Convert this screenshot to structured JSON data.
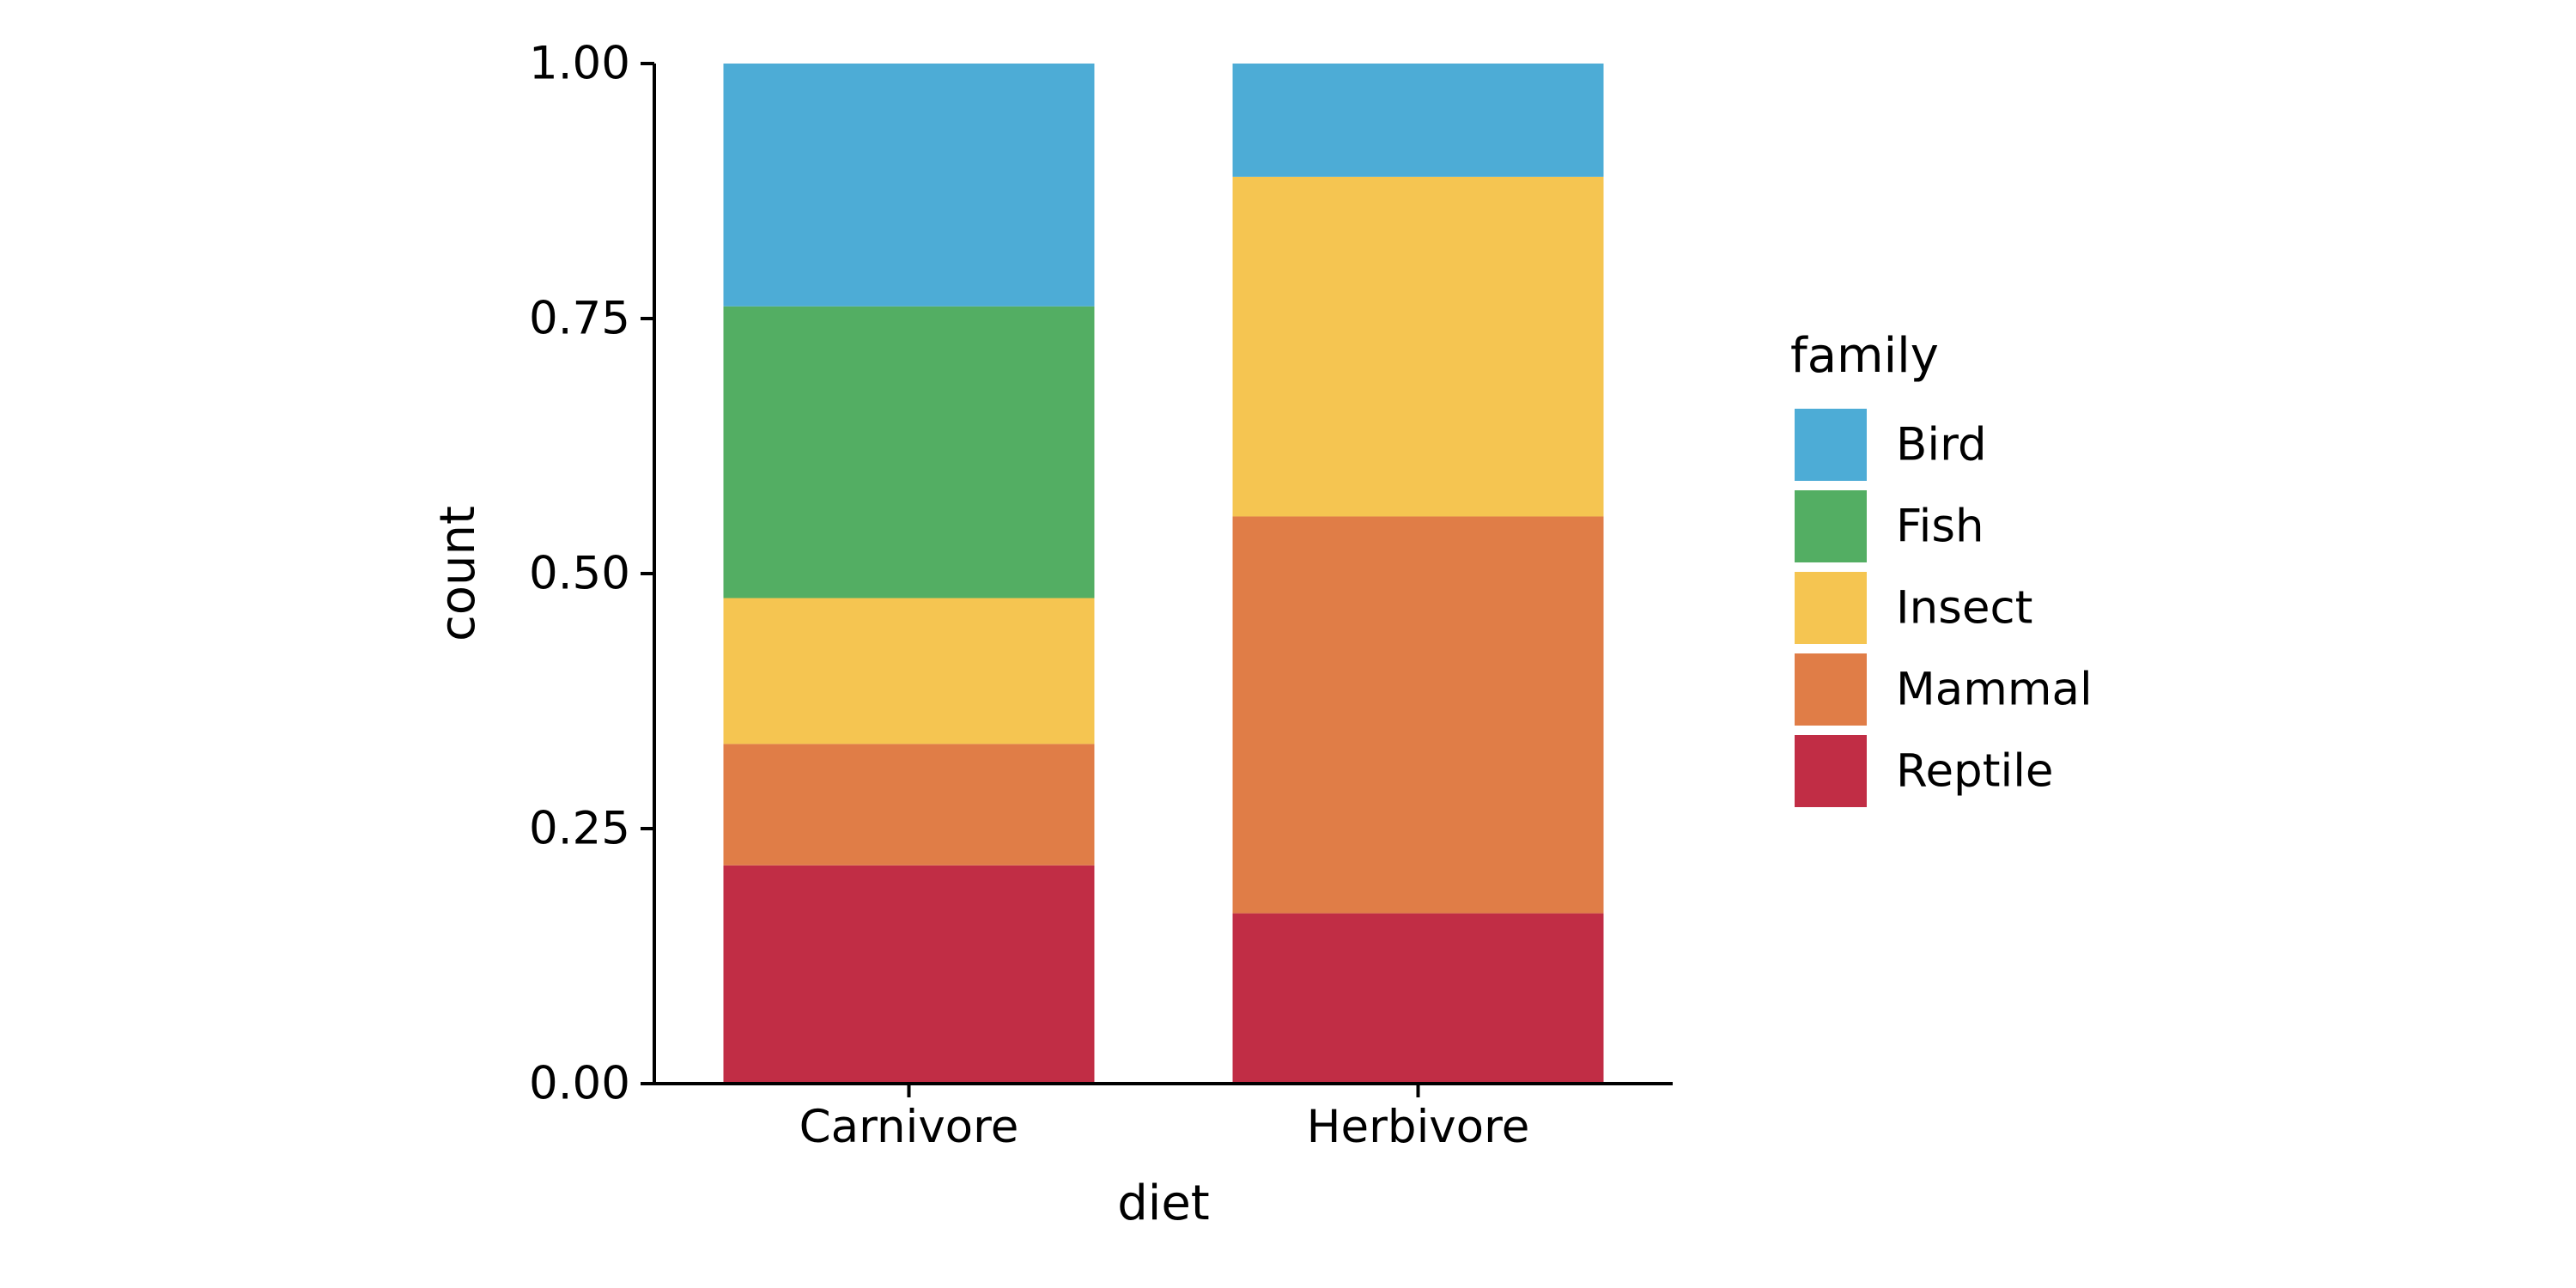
{
  "chart_data": {
    "type": "bar",
    "stacked": true,
    "xlabel": "diet",
    "ylabel": "count",
    "ylim": [
      0,
      1
    ],
    "yticks": [
      "0.00",
      "0.25",
      "0.50",
      "0.75",
      "1.00"
    ],
    "categories": [
      "Carnivore",
      "Herbivore"
    ],
    "legend_title": "family",
    "legend_position": "right",
    "series": [
      {
        "name": "Reptile",
        "color": "#C12D45",
        "values": [
          0.214,
          0.167
        ]
      },
      {
        "name": "Mammal",
        "color": "#E07D47",
        "values": [
          0.119,
          0.389
        ]
      },
      {
        "name": "Insect",
        "color": "#F5C551",
        "values": [
          0.143,
          0.333
        ]
      },
      {
        "name": "Fish",
        "color": "#53AE63",
        "values": [
          0.286,
          0.0
        ]
      },
      {
        "name": "Bird",
        "color": "#4DACD6",
        "values": [
          0.238,
          0.111
        ]
      }
    ],
    "legend_order": [
      "Bird",
      "Fish",
      "Insect",
      "Mammal",
      "Reptile"
    ]
  }
}
